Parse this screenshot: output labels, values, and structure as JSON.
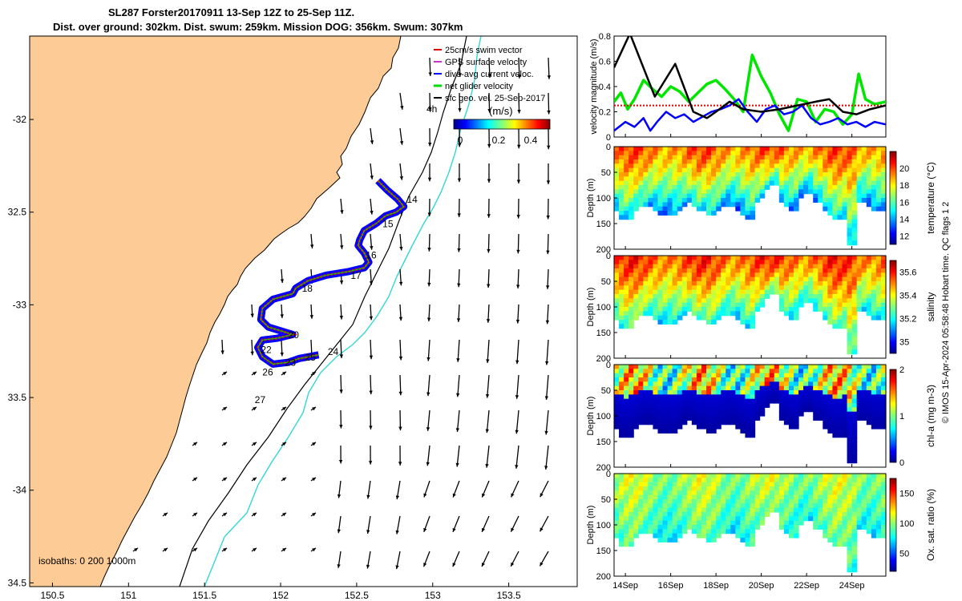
{
  "title_line1": "SL287 Forster20170911 13-Sep 12Z to 25-Sep 11Z.",
  "title_line2": "Dist. over ground: 302km. Dist. swum: 259km. Mission DOG: 356km. Swum: 307km",
  "side_note": "© IMOS 15-Apr-2024 05:58:48 Hobart time. QC flags 1  2",
  "chart_data": [
    {
      "type": "map",
      "title": "Glider track with surface current vectors",
      "xlim": [
        150.35,
        153.95
      ],
      "ylim": [
        -34.52,
        -31.55
      ],
      "x_ticks": [
        150.5,
        151,
        151.5,
        152,
        152.5,
        153,
        153.5
      ],
      "x_tick_labels": [
        "150.5",
        "151",
        "151.5",
        "152",
        "152.5",
        "153",
        "153.5"
      ],
      "y_ticks": [
        -32,
        -32.5,
        -33,
        -33.5,
        -34,
        -34.5
      ],
      "y_tick_labels": [
        "-32",
        "32.5",
        "-33",
        "33.5",
        "-34",
        "34.5"
      ],
      "legend": {
        "position": "top-right",
        "entries": [
          {
            "label": "25cm/s swim vector",
            "color": "#e60000"
          },
          {
            "label": "GPS surface velocity",
            "color": "#cc33cc"
          },
          {
            "label": "dive-avg current veloc.",
            "color": "#0000ff"
          },
          {
            "label": "net glider velocity",
            "color": "#00dd00"
          },
          {
            "label": "sfc geo. vel. 25-Sep-2017",
            "color": "#000000"
          }
        ]
      },
      "colorbar": {
        "label": "(m/s)",
        "ticks": [
          "0",
          "0.2",
          "0.4"
        ],
        "range": [
          0,
          0.5
        ]
      },
      "isobath_label": "isobaths: 0   200  1000m",
      "isobath_annotation": "4h",
      "day_labels": [
        {
          "text": "14",
          "lon": 152.83,
          "lat": -32.45
        },
        {
          "text": "15",
          "lon": 152.67,
          "lat": -32.58
        },
        {
          "text": "16",
          "lon": 152.56,
          "lat": -32.75
        },
        {
          "text": "17",
          "lon": 152.46,
          "lat": -32.86
        },
        {
          "text": "18",
          "lon": 152.14,
          "lat": -32.93
        },
        {
          "text": "20",
          "lon": 152.05,
          "lat": -33.18
        },
        {
          "text": "22",
          "lon": 151.87,
          "lat": -33.26
        },
        {
          "text": "24",
          "lon": 152.31,
          "lat": -33.27
        },
        {
          "text": "25",
          "lon": 152.16,
          "lat": -33.3
        },
        {
          "text": "23",
          "lon": 152.03,
          "lat": -33.33
        },
        {
          "text": "26",
          "lon": 151.88,
          "lat": -33.38
        },
        {
          "text": "27",
          "lon": 151.83,
          "lat": -33.53
        }
      ],
      "track": {
        "lon": [
          152.64,
          152.7,
          152.77,
          152.81,
          152.76,
          152.69,
          152.63,
          152.55,
          152.52,
          152.51,
          152.55,
          152.58,
          152.55,
          152.45,
          152.3,
          152.18,
          152.1,
          152.08,
          151.95,
          151.88,
          151.87,
          151.92,
          152.0,
          152.08,
          151.98,
          151.88,
          151.85,
          151.88,
          151.95,
          152.05,
          152.12,
          152.25
        ],
        "lat": [
          -32.33,
          -32.38,
          -32.43,
          -32.47,
          -32.5,
          -32.52,
          -32.56,
          -32.6,
          -32.65,
          -32.68,
          -32.72,
          -32.77,
          -32.8,
          -32.82,
          -32.84,
          -32.87,
          -32.91,
          -32.94,
          -32.97,
          -33.02,
          -33.08,
          -33.12,
          -33.14,
          -33.16,
          -33.18,
          -33.19,
          -33.23,
          -33.28,
          -33.32,
          -33.31,
          -33.29,
          -33.27
        ]
      }
    },
    {
      "type": "line",
      "ylabel": "velocity magnitude (m/s)",
      "ylim": [
        0,
        0.8
      ],
      "y_ticks": [
        "0",
        "0.2",
        "0.4",
        "0.6",
        "0.8"
      ],
      "xlim": [
        13.5,
        25.5
      ],
      "series": [
        {
          "name": "net glider velocity",
          "color": "#00e600",
          "x": [
            13.5,
            13.8,
            14.1,
            14.4,
            14.8,
            15.2,
            15.6,
            16.0,
            16.4,
            16.8,
            17.2,
            17.6,
            18.0,
            18.4,
            18.8,
            19.2,
            19.6,
            20.0,
            20.4,
            20.8,
            21.2,
            21.6,
            22.0,
            22.4,
            22.8,
            23.2,
            23.6,
            24.0,
            24.3,
            24.6,
            25.0,
            25.5
          ],
          "values": [
            0.28,
            0.35,
            0.22,
            0.3,
            0.45,
            0.38,
            0.32,
            0.4,
            0.36,
            0.28,
            0.35,
            0.42,
            0.45,
            0.38,
            0.3,
            0.2,
            0.65,
            0.48,
            0.35,
            0.18,
            0.05,
            0.3,
            0.28,
            0.12,
            0.22,
            0.2,
            0.1,
            0.18,
            0.5,
            0.3,
            0.26,
            0.28
          ]
        },
        {
          "name": "swim vector",
          "color": "#e60000",
          "x": [
            13.5,
            25.5
          ],
          "values": [
            0.25,
            0.25
          ]
        },
        {
          "name": "dive-avg current veloc.",
          "color": "#0000ff",
          "x": [
            13.5,
            14.0,
            14.4,
            14.8,
            15.1,
            15.4,
            15.8,
            16.2,
            16.6,
            17.0,
            17.4,
            17.8,
            18.2,
            18.6,
            19.0,
            19.4,
            19.8,
            20.2,
            20.6,
            21.0,
            21.4,
            21.8,
            22.2,
            22.6,
            23.0,
            23.4,
            23.8,
            24.2,
            24.6,
            25.0,
            25.5
          ],
          "values": [
            0.05,
            0.12,
            0.08,
            0.15,
            0.05,
            0.12,
            0.2,
            0.15,
            0.18,
            0.12,
            0.16,
            0.2,
            0.22,
            0.25,
            0.3,
            0.2,
            0.12,
            0.22,
            0.25,
            0.18,
            0.2,
            0.25,
            0.15,
            0.1,
            0.12,
            0.15,
            0.1,
            0.12,
            0.08,
            0.12,
            0.1
          ]
        },
        {
          "name": "sfc geo. vel.",
          "color": "#000000",
          "x": [
            13.5,
            14.2,
            15.3,
            16.2,
            17.0,
            17.6,
            18.0,
            18.6,
            19.2,
            20.0,
            20.8,
            21.6,
            22.4,
            23.0,
            23.6,
            24.2,
            24.8,
            25.5
          ],
          "values": [
            0.55,
            0.82,
            0.32,
            0.58,
            0.2,
            0.15,
            0.2,
            0.28,
            0.22,
            0.2,
            0.22,
            0.25,
            0.28,
            0.3,
            0.2,
            0.18,
            0.22,
            0.25
          ]
        }
      ]
    },
    {
      "type": "heatmap",
      "ylabel": "Depth (m)",
      "y_ticks": [
        "0",
        "50",
        "100",
        "150",
        "200"
      ],
      "colorbar_label": "temperature (°C)",
      "colorbar_ticks": [
        "20",
        "18",
        "16",
        "14",
        "12"
      ],
      "range": [
        11,
        22
      ],
      "surface_value": 19.5,
      "deep_value": 14.0
    },
    {
      "type": "heatmap",
      "ylabel": "Depth (m)",
      "y_ticks": [
        "0",
        "50",
        "100",
        "150",
        "200"
      ],
      "colorbar_label": "salinity",
      "colorbar_ticks": [
        "35.6",
        "35.4",
        "35.2",
        "35"
      ],
      "range": [
        34.9,
        35.7
      ],
      "surface_value": 35.55,
      "deep_value": 35.2
    },
    {
      "type": "heatmap",
      "ylabel": "Depth (m)",
      "y_ticks": [
        "0",
        "50",
        "100",
        "150",
        "200"
      ],
      "colorbar_label": "chl-a (mg m-3)",
      "colorbar_ticks": [
        "2",
        "1",
        "0"
      ],
      "range": [
        0,
        2
      ],
      "surface_value": 1.0,
      "deep_value": 0.1
    },
    {
      "type": "heatmap",
      "ylabel": "Depth (m)",
      "y_ticks": [
        "0",
        "50",
        "100",
        "150",
        "200"
      ],
      "colorbar_label": "Ox. sat. ratio (%)",
      "colorbar_ticks": [
        "150",
        "100",
        "50"
      ],
      "range": [
        20,
        175
      ],
      "surface_value": 105,
      "deep_value": 82,
      "x_tick_labels": [
        "14Sep",
        "16Sep",
        "18Sep",
        "20Sep",
        "22Sep",
        "24Sep"
      ],
      "x_ticks": [
        14,
        16,
        18,
        20,
        22,
        24
      ]
    }
  ]
}
